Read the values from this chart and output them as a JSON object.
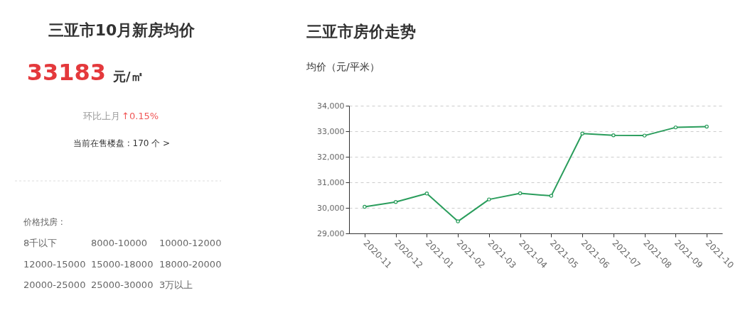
{
  "chart_data": [
    {
      "type": "other",
      "title": "三亚市10月新房均价",
      "annotations": [
        "33183",
        "元/㎡",
        "环比上月",
        "↑0.15%",
        "当前在售楼盘 : 170 个 >",
        "价格找房 :",
        "8千以下",
        "8000-10000",
        "10000-12000",
        "12000-15000",
        "15000-18000",
        "18000-20000",
        "20000-25000",
        "25000-30000",
        "3万以上"
      ]
    },
    {
      "type": "line",
      "title": "三亚市房价走势",
      "ylabel": "均价（元/平米）",
      "categories": [
        "2020-11",
        "2020-12",
        "2021-01",
        "2021-02",
        "2021-03",
        "2021-04",
        "2021-05",
        "2021-06",
        "2021-07",
        "2021-08",
        "2021-09",
        "2021-10"
      ],
      "series": [
        {
          "color": "#2a9d5c",
          "values": [
            30040,
            30230,
            30560,
            29470,
            30330,
            30570,
            30470,
            32910,
            32840,
            32830,
            33150,
            33183
          ]
        }
      ],
      "ylim": [
        29000,
        34000
      ],
      "yticks": [
        {
          "value": 29000,
          "label": "29,000"
        },
        {
          "value": 30000,
          "label": "30,000"
        },
        {
          "value": 31000,
          "label": "31,000"
        },
        {
          "value": 32000,
          "label": "32,000"
        },
        {
          "value": 33000,
          "label": "33,000"
        },
        {
          "value": 34000,
          "label": "34,000"
        }
      ],
      "grid": "y",
      "marker": "circle",
      "line_style": "solid"
    }
  ]
}
